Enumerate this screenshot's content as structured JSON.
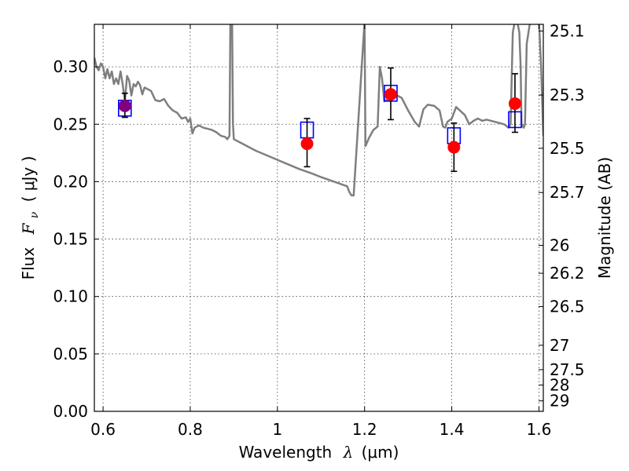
{
  "chart_data": {
    "type": "scatter",
    "xlabel_prefix": "Wavelength",
    "xlabel_symbol": "λ",
    "xlabel_unit": "(μm)",
    "ylabel_prefix": "Flux",
    "ylabel_symbol": "F",
    "ylabel_subscript": "ν",
    "ylabel_unit": "( μJy )",
    "y2label": "Magnitude (AB)",
    "xlim": [
      0.58,
      1.61
    ],
    "ylim": [
      0.0,
      0.337
    ],
    "x_ticks": [
      0.6,
      0.8,
      1.0,
      1.2,
      1.4,
      1.6
    ],
    "x_tick_labels": [
      "0.6",
      "0.8",
      "1",
      "1.2",
      "1.4",
      "1.6"
    ],
    "y_ticks": [
      0.0,
      0.05,
      0.1,
      0.15,
      0.2,
      0.25,
      0.3
    ],
    "y_tick_labels": [
      "0.00",
      "0.05",
      "0.10",
      "0.15",
      "0.20",
      "0.25",
      "0.30"
    ],
    "mag_ticks": [
      "25.1",
      "25.3",
      "25.5",
      "25.7",
      "26",
      "26.2",
      "26.5",
      "27",
      "27.5",
      "28",
      "29"
    ],
    "grid": true,
    "colors": {
      "spectrum": "#7f7f7f",
      "observed": "#ff0000",
      "model": "#0000ff",
      "overlap": "#800080",
      "errorbar": "#000000"
    },
    "observed": {
      "x": [
        0.65,
        1.068,
        1.26,
        1.405,
        1.545
      ],
      "y": [
        0.266,
        0.233,
        0.276,
        0.23,
        0.268
      ],
      "yerr_low": [
        0.01,
        0.02,
        0.022,
        0.021,
        0.025
      ],
      "yerr_high": [
        0.011,
        0.022,
        0.023,
        0.021,
        0.026
      ]
    },
    "model": {
      "x": [
        0.65,
        1.068,
        1.26,
        1.405,
        1.545
      ],
      "y": [
        0.264,
        0.245,
        0.277,
        0.24,
        0.254
      ]
    },
    "spectrum": {
      "x": [
        0.58,
        0.585,
        0.59,
        0.595,
        0.6,
        0.605,
        0.61,
        0.615,
        0.62,
        0.625,
        0.63,
        0.635,
        0.64,
        0.645,
        0.65,
        0.655,
        0.66,
        0.665,
        0.67,
        0.675,
        0.68,
        0.685,
        0.69,
        0.695,
        0.7,
        0.71,
        0.72,
        0.73,
        0.74,
        0.75,
        0.76,
        0.77,
        0.78,
        0.79,
        0.795,
        0.8,
        0.805,
        0.81,
        0.82,
        0.83,
        0.84,
        0.85,
        0.86,
        0.87,
        0.88,
        0.885,
        0.89,
        0.892,
        0.894,
        0.896,
        0.898,
        0.9,
        0.92,
        0.95,
        1.0,
        1.05,
        1.08,
        1.1,
        1.13,
        1.16,
        1.165,
        1.17,
        1.175,
        1.2,
        1.202,
        1.21,
        1.22,
        1.23,
        1.235,
        1.24,
        1.245,
        1.255,
        1.265,
        1.275,
        1.285,
        1.3,
        1.315,
        1.325,
        1.335,
        1.345,
        1.36,
        1.372,
        1.38,
        1.385,
        1.39,
        1.4,
        1.41,
        1.43,
        1.44,
        1.45,
        1.46,
        1.47,
        1.48,
        1.5,
        1.52,
        1.53,
        1.535,
        1.54,
        1.545,
        1.548,
        1.55,
        1.555,
        1.558,
        1.56,
        1.565,
        1.568,
        1.572,
        1.58,
        1.59,
        1.6,
        1.605,
        1.61
      ],
      "y": [
        0.308,
        0.3,
        0.297,
        0.303,
        0.3,
        0.29,
        0.298,
        0.29,
        0.296,
        0.285,
        0.29,
        0.285,
        0.296,
        0.285,
        0.27,
        0.292,
        0.288,
        0.275,
        0.285,
        0.283,
        0.287,
        0.284,
        0.276,
        0.282,
        0.281,
        0.279,
        0.271,
        0.27,
        0.272,
        0.266,
        0.262,
        0.26,
        0.255,
        0.256,
        0.252,
        0.255,
        0.242,
        0.247,
        0.249,
        0.247,
        0.246,
        0.245,
        0.243,
        0.24,
        0.239,
        0.237,
        0.24,
        0.34,
        0.34,
        0.34,
        0.25,
        0.237,
        0.233,
        0.227,
        0.219,
        0.211,
        0.207,
        0.204,
        0.2,
        0.196,
        0.191,
        0.188,
        0.188,
        0.34,
        0.231,
        0.238,
        0.245,
        0.248,
        0.3,
        0.29,
        0.27,
        0.272,
        0.276,
        0.275,
        0.273,
        0.262,
        0.252,
        0.248,
        0.263,
        0.267,
        0.266,
        0.262,
        0.248,
        0.247,
        0.252,
        0.255,
        0.265,
        0.258,
        0.25,
        0.253,
        0.255,
        0.253,
        0.254,
        0.252,
        0.25,
        0.247,
        0.25,
        0.33,
        0.34,
        0.34,
        0.34,
        0.33,
        0.3,
        0.25,
        0.247,
        0.25,
        0.32,
        0.34,
        0.34,
        0.34,
        0.3,
        0.24
      ]
    }
  }
}
